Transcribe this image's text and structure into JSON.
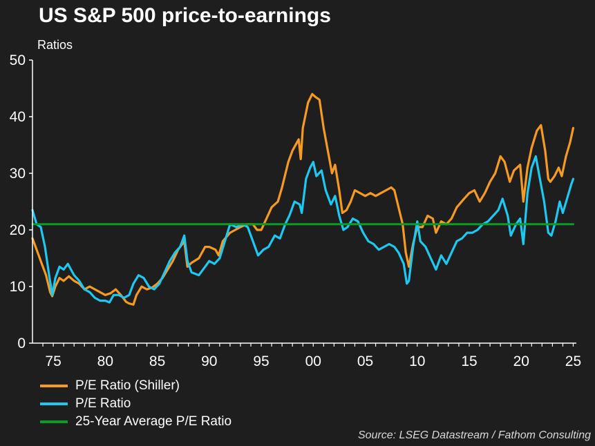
{
  "title": "US S&P 500 price-to-earnings",
  "subtitle": "Ratios",
  "source": "Source: LSEG Datastream / Fathom Consulting",
  "chart_data": {
    "type": "line",
    "title": "US S&P 500 price-to-earnings",
    "ylabel": "Ratios",
    "xlabel": "",
    "xlim": [
      1973,
      2025.3
    ],
    "ylim": [
      0,
      50
    ],
    "y_ticks": [
      "0",
      "10",
      "20",
      "30",
      "40",
      "50"
    ],
    "x_ticks": [
      {
        "x": 1975,
        "label": "75"
      },
      {
        "x": 1980,
        "label": "80"
      },
      {
        "x": 1985,
        "label": "85"
      },
      {
        "x": 1990,
        "label": "90"
      },
      {
        "x": 1995,
        "label": "95"
      },
      {
        "x": 2000,
        "label": "00"
      },
      {
        "x": 2005,
        "label": "05"
      },
      {
        "x": 2010,
        "label": "10"
      },
      {
        "x": 2015,
        "label": "15"
      },
      {
        "x": 2020,
        "label": "20"
      },
      {
        "x": 2025,
        "label": "25"
      }
    ],
    "grid": false,
    "legend_position": "bottom-left",
    "series": [
      {
        "name": "P/E Ratio (Shiller)",
        "color": "#f59a23",
        "points": [
          [
            1973.0,
            18.5
          ],
          [
            1973.4,
            16.5
          ],
          [
            1973.9,
            14.0
          ],
          [
            1974.3,
            12.0
          ],
          [
            1974.7,
            9.0
          ],
          [
            1974.9,
            8.3
          ],
          [
            1975.2,
            10.0
          ],
          [
            1975.6,
            11.5
          ],
          [
            1976.0,
            11.0
          ],
          [
            1976.5,
            11.8
          ],
          [
            1977.0,
            11.0
          ],
          [
            1977.5,
            10.5
          ],
          [
            1978.0,
            9.5
          ],
          [
            1978.5,
            10.0
          ],
          [
            1979.0,
            9.5
          ],
          [
            1979.5,
            9.0
          ],
          [
            1980.0,
            8.5
          ],
          [
            1980.5,
            8.8
          ],
          [
            1981.0,
            9.5
          ],
          [
            1981.5,
            8.5
          ],
          [
            1982.0,
            7.3
          ],
          [
            1982.3,
            7.0
          ],
          [
            1982.7,
            6.8
          ],
          [
            1983.0,
            8.5
          ],
          [
            1983.5,
            10.0
          ],
          [
            1984.0,
            9.5
          ],
          [
            1984.5,
            9.8
          ],
          [
            1985.0,
            10.5
          ],
          [
            1985.5,
            11.5
          ],
          [
            1986.0,
            13.0
          ],
          [
            1986.5,
            14.5
          ],
          [
            1987.0,
            16.5
          ],
          [
            1987.6,
            18.0
          ],
          [
            1987.9,
            13.5
          ],
          [
            1988.3,
            14.2
          ],
          [
            1989.0,
            15.0
          ],
          [
            1989.6,
            17.0
          ],
          [
            1990.0,
            17.0
          ],
          [
            1990.6,
            16.5
          ],
          [
            1990.9,
            15.5
          ],
          [
            1991.3,
            18.0
          ],
          [
            1992.0,
            19.5
          ],
          [
            1993.0,
            20.5
          ],
          [
            1993.6,
            21.0
          ],
          [
            1994.2,
            21.0
          ],
          [
            1994.6,
            20.0
          ],
          [
            1995.0,
            20.0
          ],
          [
            1995.5,
            22.0
          ],
          [
            1996.0,
            24.0
          ],
          [
            1996.6,
            25.0
          ],
          [
            1997.0,
            27.5
          ],
          [
            1997.6,
            32.0
          ],
          [
            1998.0,
            34.0
          ],
          [
            1998.6,
            36.0
          ],
          [
            1998.8,
            32.5
          ],
          [
            1999.0,
            38.0
          ],
          [
            1999.5,
            42.5
          ],
          [
            1999.9,
            44.0
          ],
          [
            2000.2,
            43.5
          ],
          [
            2000.6,
            43.0
          ],
          [
            2001.0,
            38.0
          ],
          [
            2001.5,
            33.0
          ],
          [
            2001.8,
            30.0
          ],
          [
            2002.1,
            31.5
          ],
          [
            2002.5,
            27.0
          ],
          [
            2002.8,
            23.0
          ],
          [
            2003.2,
            23.5
          ],
          [
            2003.6,
            25.0
          ],
          [
            2004.0,
            27.0
          ],
          [
            2004.5,
            26.5
          ],
          [
            2005.0,
            26.0
          ],
          [
            2005.5,
            26.5
          ],
          [
            2006.0,
            26.0
          ],
          [
            2006.5,
            26.5
          ],
          [
            2007.0,
            27.0
          ],
          [
            2007.5,
            27.5
          ],
          [
            2007.8,
            27.0
          ],
          [
            2008.2,
            24.0
          ],
          [
            2008.6,
            21.0
          ],
          [
            2008.9,
            16.0
          ],
          [
            2009.2,
            13.5
          ],
          [
            2009.6,
            17.5
          ],
          [
            2010.0,
            20.5
          ],
          [
            2010.5,
            20.5
          ],
          [
            2011.0,
            22.5
          ],
          [
            2011.5,
            22.0
          ],
          [
            2011.8,
            19.5
          ],
          [
            2012.3,
            21.5
          ],
          [
            2012.8,
            21.0
          ],
          [
            2013.3,
            22.0
          ],
          [
            2013.8,
            24.0
          ],
          [
            2014.5,
            25.5
          ],
          [
            2015.0,
            26.5
          ],
          [
            2015.5,
            27.0
          ],
          [
            2016.0,
            25.0
          ],
          [
            2016.5,
            26.5
          ],
          [
            2017.0,
            28.5
          ],
          [
            2017.5,
            30.0
          ],
          [
            2018.0,
            33.0
          ],
          [
            2018.4,
            32.0
          ],
          [
            2018.9,
            28.5
          ],
          [
            2019.3,
            30.5
          ],
          [
            2019.9,
            31.5
          ],
          [
            2020.2,
            25.0
          ],
          [
            2020.6,
            31.0
          ],
          [
            2021.0,
            34.5
          ],
          [
            2021.5,
            37.5
          ],
          [
            2021.9,
            38.5
          ],
          [
            2022.3,
            34.0
          ],
          [
            2022.6,
            29.0
          ],
          [
            2022.8,
            28.5
          ],
          [
            2023.2,
            29.5
          ],
          [
            2023.6,
            31.0
          ],
          [
            2023.9,
            29.5
          ],
          [
            2024.3,
            33.0
          ],
          [
            2024.7,
            35.5
          ],
          [
            2025.0,
            38.0
          ]
        ]
      },
      {
        "name": "P/E Ratio",
        "color": "#1ec8f0",
        "points": [
          [
            1973.0,
            23.5
          ],
          [
            1973.4,
            21.0
          ],
          [
            1973.8,
            20.5
          ],
          [
            1974.2,
            17.0
          ],
          [
            1974.6,
            12.0
          ],
          [
            1974.9,
            8.5
          ],
          [
            1975.2,
            11.5
          ],
          [
            1975.6,
            13.5
          ],
          [
            1976.0,
            13.0
          ],
          [
            1976.4,
            14.0
          ],
          [
            1977.0,
            12.0
          ],
          [
            1977.5,
            11.0
          ],
          [
            1978.0,
            9.5
          ],
          [
            1978.5,
            9.0
          ],
          [
            1979.0,
            8.0
          ],
          [
            1979.5,
            7.5
          ],
          [
            1980.0,
            7.5
          ],
          [
            1980.4,
            7.2
          ],
          [
            1980.8,
            8.5
          ],
          [
            1981.3,
            8.5
          ],
          [
            1981.8,
            8.0
          ],
          [
            1982.3,
            8.5
          ],
          [
            1982.7,
            10.5
          ],
          [
            1983.2,
            12.0
          ],
          [
            1983.7,
            11.5
          ],
          [
            1984.2,
            10.0
          ],
          [
            1984.7,
            9.5
          ],
          [
            1985.2,
            10.5
          ],
          [
            1985.7,
            12.5
          ],
          [
            1986.2,
            14.5
          ],
          [
            1986.7,
            16.0
          ],
          [
            1987.2,
            17.0
          ],
          [
            1987.6,
            19.0
          ],
          [
            1987.9,
            14.5
          ],
          [
            1988.3,
            12.5
          ],
          [
            1989.0,
            12.0
          ],
          [
            1989.6,
            13.5
          ],
          [
            1990.0,
            14.5
          ],
          [
            1990.5,
            14.0
          ],
          [
            1991.0,
            15.0
          ],
          [
            1991.5,
            18.0
          ],
          [
            1992.0,
            21.0
          ],
          [
            1992.6,
            20.5
          ],
          [
            1993.2,
            21.0
          ],
          [
            1993.7,
            20.5
          ],
          [
            1994.2,
            18.0
          ],
          [
            1994.7,
            15.5
          ],
          [
            1995.2,
            16.5
          ],
          [
            1995.7,
            17.0
          ],
          [
            1996.3,
            19.0
          ],
          [
            1996.8,
            18.5
          ],
          [
            1997.3,
            21.0
          ],
          [
            1997.7,
            22.5
          ],
          [
            1998.2,
            25.0
          ],
          [
            1998.7,
            24.5
          ],
          [
            1998.9,
            23.0
          ],
          [
            1999.3,
            29.0
          ],
          [
            1999.7,
            31.0
          ],
          [
            2000.0,
            32.0
          ],
          [
            2000.3,
            29.5
          ],
          [
            2000.8,
            30.5
          ],
          [
            2001.2,
            27.0
          ],
          [
            2001.7,
            24.5
          ],
          [
            2002.1,
            26.0
          ],
          [
            2002.5,
            22.5
          ],
          [
            2002.9,
            20.0
          ],
          [
            2003.3,
            20.5
          ],
          [
            2003.8,
            22.0
          ],
          [
            2004.3,
            21.5
          ],
          [
            2004.8,
            19.5
          ],
          [
            2005.3,
            18.0
          ],
          [
            2005.8,
            17.5
          ],
          [
            2006.3,
            16.5
          ],
          [
            2006.8,
            17.0
          ],
          [
            2007.3,
            17.5
          ],
          [
            2007.8,
            17.0
          ],
          [
            2008.2,
            16.0
          ],
          [
            2008.7,
            14.0
          ],
          [
            2009.0,
            10.5
          ],
          [
            2009.2,
            11.0
          ],
          [
            2009.6,
            17.0
          ],
          [
            2010.0,
            21.5
          ],
          [
            2010.3,
            18.0
          ],
          [
            2010.8,
            17.0
          ],
          [
            2011.3,
            15.0
          ],
          [
            2011.8,
            13.0
          ],
          [
            2012.3,
            15.5
          ],
          [
            2012.8,
            14.0
          ],
          [
            2013.3,
            16.0
          ],
          [
            2013.8,
            18.0
          ],
          [
            2014.3,
            18.5
          ],
          [
            2014.8,
            19.5
          ],
          [
            2015.3,
            19.5
          ],
          [
            2015.8,
            20.0
          ],
          [
            2016.3,
            21.0
          ],
          [
            2016.8,
            21.5
          ],
          [
            2017.3,
            22.5
          ],
          [
            2017.8,
            23.5
          ],
          [
            2018.2,
            25.5
          ],
          [
            2018.7,
            22.5
          ],
          [
            2019.0,
            19.0
          ],
          [
            2019.5,
            21.0
          ],
          [
            2019.9,
            22.0
          ],
          [
            2020.2,
            17.5
          ],
          [
            2020.6,
            26.5
          ],
          [
            2021.0,
            31.0
          ],
          [
            2021.4,
            33.0
          ],
          [
            2021.8,
            29.0
          ],
          [
            2022.2,
            25.0
          ],
          [
            2022.6,
            19.5
          ],
          [
            2022.9,
            19.0
          ],
          [
            2023.3,
            21.5
          ],
          [
            2023.7,
            25.0
          ],
          [
            2024.0,
            23.0
          ],
          [
            2024.4,
            25.5
          ],
          [
            2024.8,
            28.0
          ],
          [
            2025.0,
            29.0
          ]
        ]
      },
      {
        "name": "25-Year Average P/E Ratio",
        "color": "#0a9e26",
        "points": [
          [
            1973.0,
            21.0
          ],
          [
            2025.0,
            21.0
          ]
        ]
      }
    ]
  }
}
